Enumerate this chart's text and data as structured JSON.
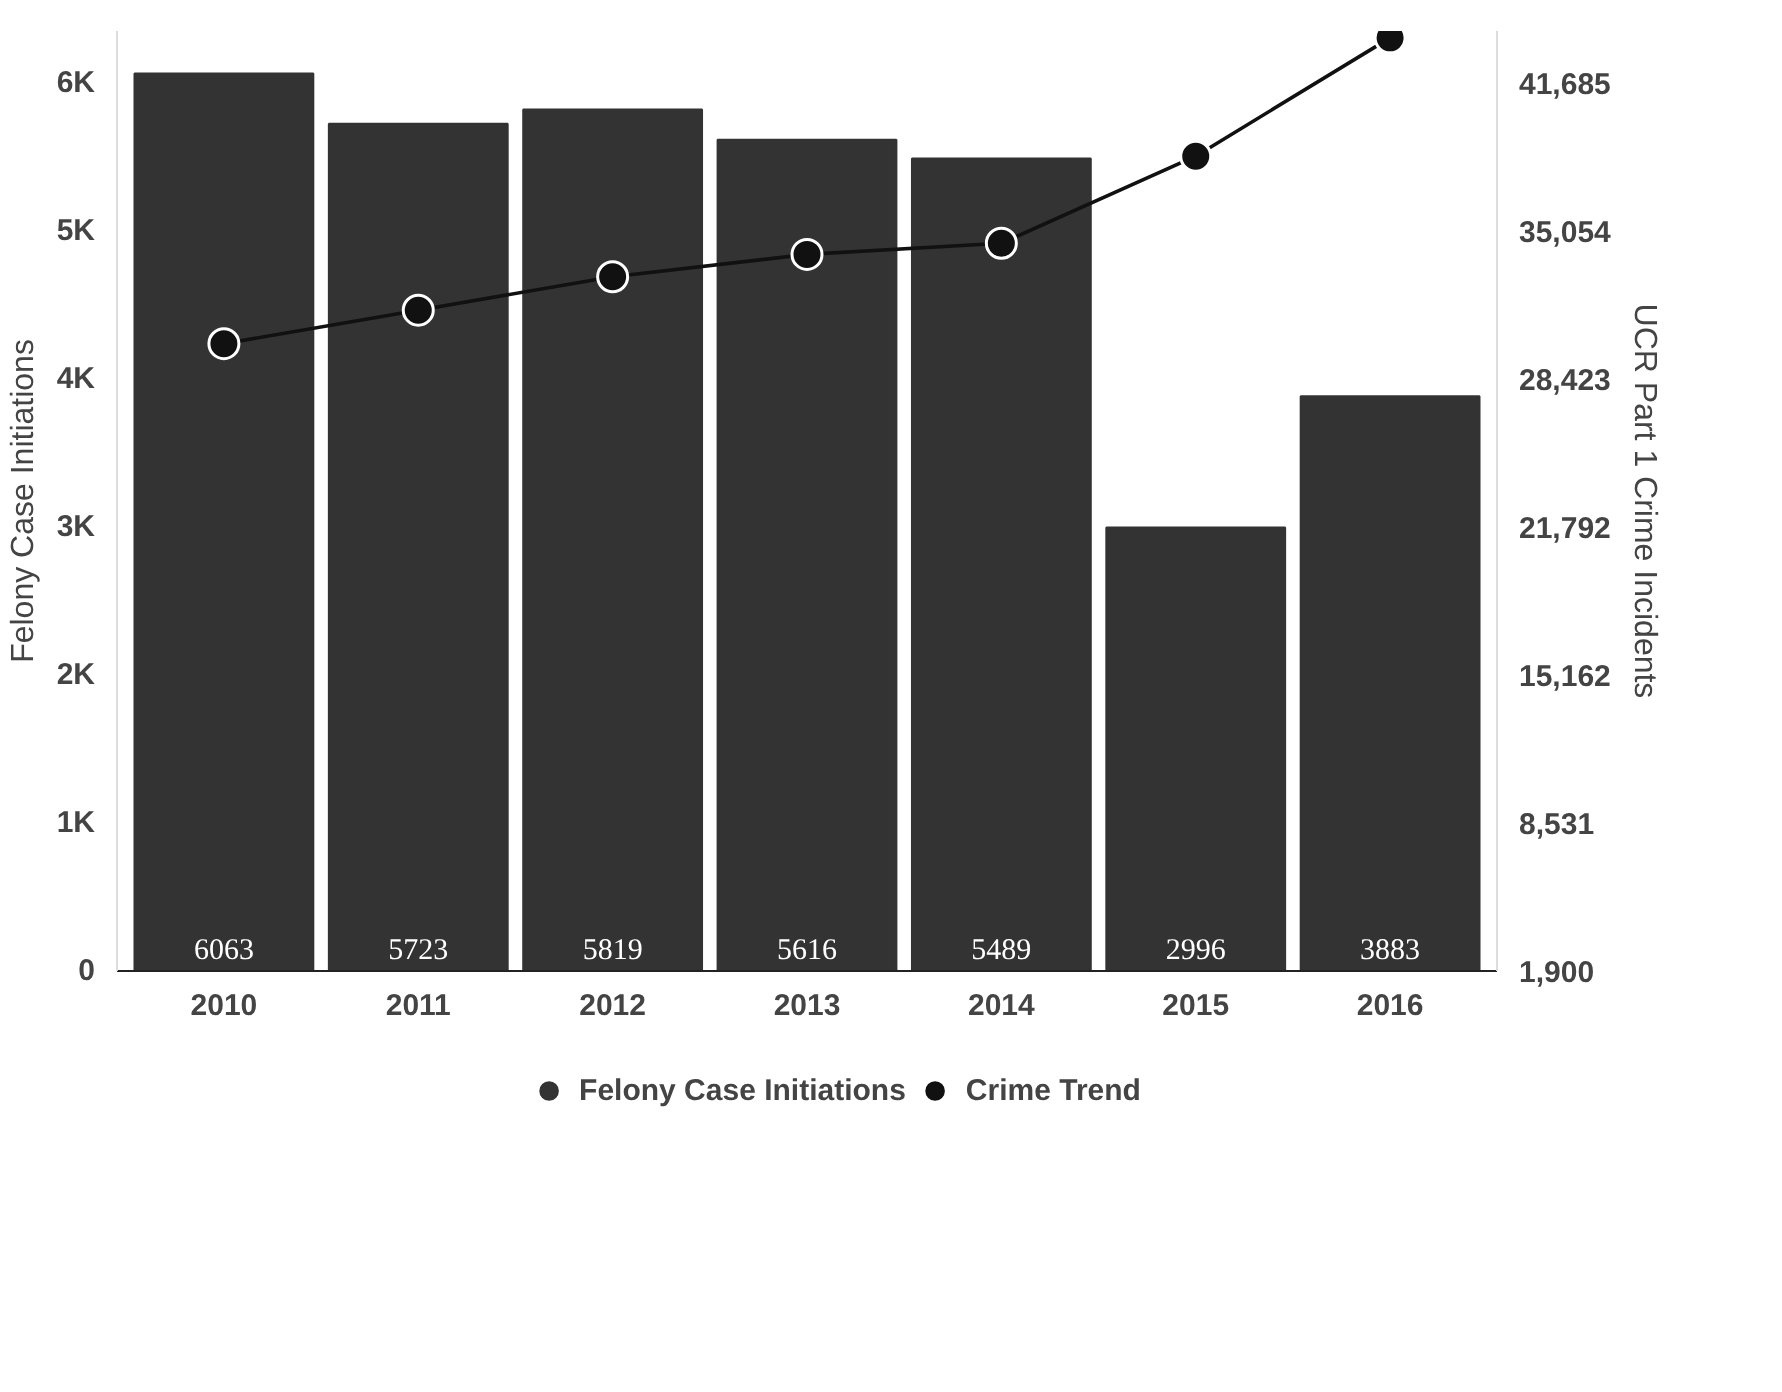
{
  "chart_data": {
    "type": "bar",
    "categories": [
      "2010",
      "2011",
      "2012",
      "2013",
      "2014",
      "2015",
      "2016"
    ],
    "ylabel": "Felony Case Initiations",
    "y2label": "UCR Part 1 Crime Incidents",
    "ylim": [
      0,
      6350
    ],
    "yticks": [
      0,
      {
        "value": 1000,
        "label": "1K"
      },
      {
        "value": 2000,
        "label": "2K"
      },
      {
        "value": 3000,
        "label": "3K"
      },
      {
        "value": 4000,
        "label": "4K"
      },
      {
        "value": 5000,
        "label": "5K"
      },
      {
        "value": 6000,
        "label": "6K"
      }
    ],
    "y2lim": [
      1900,
      44007
    ],
    "y2ticks": [
      {
        "value": 1900,
        "label": "1,900"
      },
      {
        "value": 8531,
        "label": "8,531"
      },
      {
        "value": 15162,
        "label": "15,162"
      },
      {
        "value": 21792,
        "label": "21,792"
      },
      {
        "value": 28423,
        "label": "28,423"
      },
      {
        "value": 35054,
        "label": "35,054"
      },
      {
        "value": 41685,
        "label": "41,685"
      }
    ],
    "series": [
      {
        "name": "Felony Case Initiations",
        "color": "#333333",
        "values": [
          6063,
          5723,
          5819,
          5616,
          5489,
          2996,
          3883
        ],
        "value_labels": [
          "6063",
          "5723",
          "5819",
          "5616",
          "5489",
          "2996",
          "3883"
        ]
      },
      {
        "name": "Crime Trend",
        "type": "line",
        "axis": "y2",
        "color": "#111111",
        "marker": "circle",
        "values": [
          30000,
          31500,
          33000,
          34000,
          34500,
          38400,
          43700
        ]
      }
    ],
    "legend": "bottom",
    "grid": false
  }
}
